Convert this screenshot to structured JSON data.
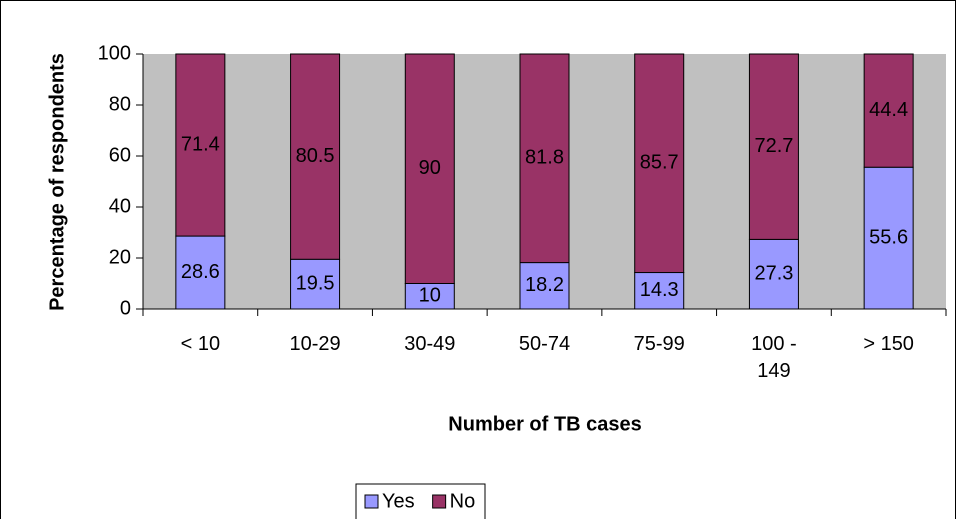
{
  "chart_data": {
    "type": "stacked_bar",
    "x_label": "Number of TB cases",
    "y_label": "Percentage of respondents",
    "categories": [
      "< 10",
      "10-29",
      "30-49",
      "50-74",
      "75-99",
      "100 - 149",
      "> 150"
    ],
    "series": [
      {
        "name": "Yes",
        "color": "#9999ff",
        "values": [
          28.6,
          19.5,
          10,
          18.2,
          14.3,
          27.3,
          55.6
        ]
      },
      {
        "name": "No",
        "color": "#993366",
        "values": [
          71.4,
          80.5,
          90,
          81.8,
          85.7,
          72.7,
          44.4
        ]
      }
    ],
    "ylim": [
      0,
      100
    ],
    "yticks": [
      0,
      20,
      40,
      60,
      80,
      100
    ],
    "grid": false,
    "legend": "bottom",
    "plot_background": "#c0c0c0"
  }
}
